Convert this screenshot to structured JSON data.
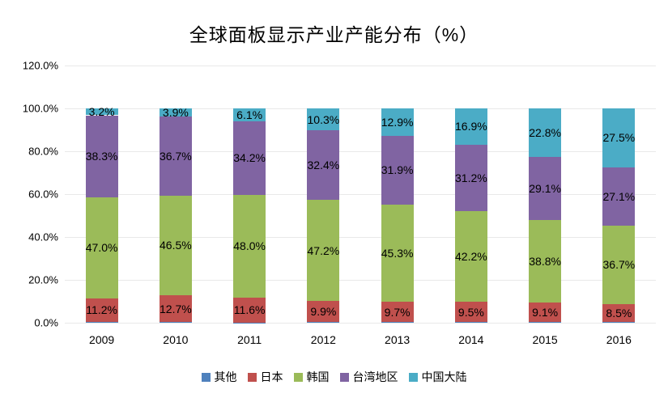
{
  "chart_data": {
    "type": "bar",
    "stacked": true,
    "title": "全球面板显示产业产能分布（%）",
    "categories": [
      "2009",
      "2010",
      "2011",
      "2012",
      "2013",
      "2014",
      "2015",
      "2016"
    ],
    "series": [
      {
        "key": "other",
        "name": "其他",
        "color": "#4F81BD",
        "labels_visible": false,
        "values": [
          0.3,
          0.2,
          0.1,
          0.2,
          0.2,
          0.2,
          0.2,
          0.2
        ]
      },
      {
        "key": "japan",
        "name": "日本",
        "color": "#C0504D",
        "labels_visible": true,
        "values": [
          11.2,
          12.7,
          11.6,
          9.9,
          9.7,
          9.5,
          9.1,
          8.5
        ]
      },
      {
        "key": "korea",
        "name": "韩国",
        "color": "#9BBB59",
        "labels_visible": true,
        "values": [
          47.0,
          46.5,
          48.0,
          47.2,
          45.3,
          42.2,
          38.8,
          36.7
        ]
      },
      {
        "key": "taiwan",
        "name": "台湾地区",
        "color": "#8064A2",
        "labels_visible": true,
        "values": [
          38.3,
          36.7,
          34.2,
          32.4,
          31.9,
          31.2,
          29.1,
          27.1
        ]
      },
      {
        "key": "mainland-china",
        "name": "中国大陆",
        "color": "#4BACC6",
        "labels_visible": true,
        "values": [
          3.2,
          3.9,
          6.1,
          10.3,
          12.9,
          16.9,
          22.8,
          27.5
        ]
      }
    ],
    "yaxis": {
      "min": 0,
      "max": 120,
      "step": 20,
      "tick_labels": [
        "0.0%",
        "20.0%",
        "40.0%",
        "60.0%",
        "80.0%",
        "100.0%",
        "120.0%"
      ]
    },
    "grid": true,
    "legend_position": "bottom",
    "label_suffix": "%"
  },
  "colors": {
    "background": "#FFFFFF",
    "gridline": "#E9E9E9",
    "text": "#000000"
  }
}
